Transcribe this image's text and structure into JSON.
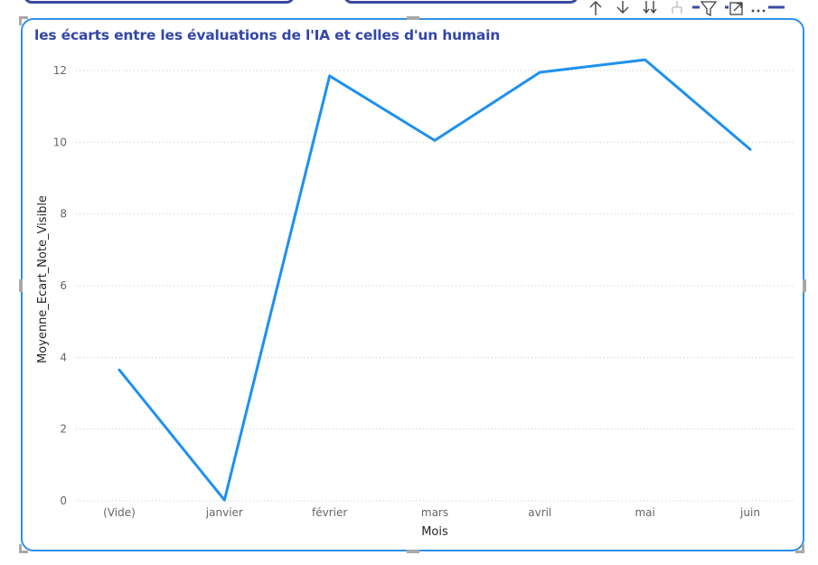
{
  "visual": {
    "title": "les écarts entre les évaluations de l'IA et celles d'un humain",
    "header_icons": [
      "arrow-up-icon",
      "arrow-down-icon",
      "double-arrow-down-icon",
      "expand-hierarchy-icon",
      "filter-icon",
      "focus-mode-icon",
      "more-options-icon"
    ]
  },
  "colors": {
    "line": "#1e90f0",
    "title": "#3346a8",
    "border": "#2f8fe8"
  },
  "chart_data": {
    "type": "line",
    "title": "les écarts entre les évaluations de l'IA et celles d'un humain",
    "xlabel": "Mois",
    "ylabel": "Moyenne_Ecart_Note_Visible",
    "categories": [
      "(Vide)",
      "janvier",
      "février",
      "mars",
      "avril",
      "mai",
      "juin"
    ],
    "series": [
      {
        "values": [
          3.65,
          0.02,
          11.85,
          10.05,
          11.95,
          12.3,
          9.8
        ]
      }
    ],
    "ylim": [
      0,
      12
    ],
    "yticks": [
      0,
      2,
      4,
      6,
      8,
      10,
      12
    ],
    "grid": true,
    "legend": "none"
  }
}
